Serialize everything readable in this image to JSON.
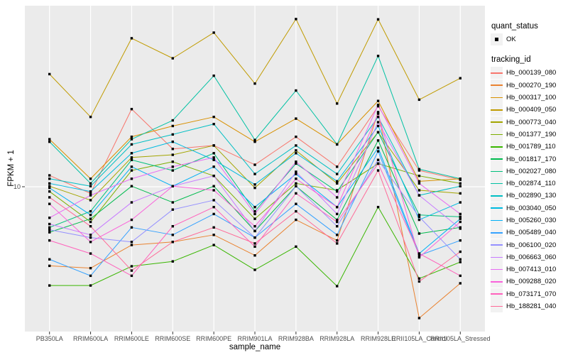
{
  "axes": {
    "x_title": "sample_name",
    "y_title": "FPKM + 1",
    "y_tick_label": "10"
  },
  "legend": {
    "quant_status_title": "quant_status",
    "quant_status_items": [
      {
        "label": "OK",
        "marker": "black-square-point"
      }
    ],
    "tracking_id_title": "tracking_id"
  },
  "colors": {
    "panel_bg": "#EBEBEB",
    "grid": "#FFFFFF",
    "tick_text": "#4D4D4D",
    "tick_mark": "#333333",
    "point": "#000000",
    "legend_key_bg": "#F2F2F2"
  },
  "chart_data": {
    "type": "line",
    "title": "",
    "xlabel": "sample_name",
    "ylabel": "FPKM + 1",
    "y_scale": "log10",
    "y_breaks": [
      10
    ],
    "grid": "major-on",
    "legend_position": "right",
    "point_shape": "filled-square",
    "categories": [
      "PB350LA",
      "RRIM600LA",
      "RRIM600LE",
      "RRIM600SE",
      "RRIM600PE",
      "RRIM901LA",
      "RRIM928BA",
      "RRIM928LA",
      "RRIM928LE",
      "RRII105LA_Control",
      "RRII105LA_Stressed"
    ],
    "series": [
      {
        "name": "Hb_000139_080",
        "color": "#F8766D",
        "values": [
          12.2,
          8.9,
          39,
          19.4,
          20.6,
          14.7,
          24,
          14.2,
          41,
          13.3,
          11.3
        ]
      },
      {
        "name": "Hb_000270_190",
        "color": "#EA8331",
        "values": [
          2.5,
          2.4,
          3.6,
          3.8,
          4.3,
          3.0,
          5.6,
          3.9,
          37,
          1.0,
          1.84
        ]
      },
      {
        "name": "Hb_000317_100",
        "color": "#D89000",
        "values": [
          23,
          11.5,
          24,
          29,
          34,
          22,
          33,
          21,
          45,
          11,
          11.5
        ]
      },
      {
        "name": "Hb_000409_050",
        "color": "#C09B00",
        "values": [
          72,
          34,
          135,
          95,
          149,
          61,
          189,
          43,
          188,
          46,
          67
        ]
      },
      {
        "name": "Hb_000773_040",
        "color": "#A3A500",
        "values": [
          10.1,
          7.9,
          16.7,
          17.5,
          20.6,
          9.8,
          18.9,
          10.6,
          26,
          9.4,
          8.9
        ]
      },
      {
        "name": "Hb_001377_190",
        "color": "#7CAE00",
        "values": [
          9.2,
          5.4,
          13.3,
          15.5,
          12.1,
          5.7,
          10.6,
          9.4,
          15,
          12.1,
          10.6
        ]
      },
      {
        "name": "Hb_001789_110",
        "color": "#39B600",
        "values": [
          1.77,
          1.77,
          2.48,
          2.7,
          3.6,
          2.33,
          3.5,
          1.75,
          7.0,
          2.0,
          2.67
        ]
      },
      {
        "name": "Hb_001817_170",
        "color": "#00BB4E",
        "values": [
          4.5,
          5.7,
          10.1,
          7.6,
          10.1,
          4.6,
          10.1,
          5.6,
          22.5,
          4.4,
          4.9
        ]
      },
      {
        "name": "Hb_002027_080",
        "color": "#00BF7D",
        "values": [
          4.9,
          6.5,
          16,
          13.3,
          18,
          6.5,
          15,
          9.2,
          26,
          6.1,
          5.9
        ]
      },
      {
        "name": "Hb_002874_110",
        "color": "#00C1A3",
        "values": [
          22,
          10.6,
          23,
          32,
          70,
          22.7,
          54,
          21,
          99,
          13.6,
          11.5
        ]
      },
      {
        "name": "Hb_002890_130",
        "color": "#00BFC4",
        "values": [
          11.5,
          10.1,
          21,
          25,
          30,
          12.5,
          20.6,
          12.5,
          34,
          8.6,
          10.1
        ]
      },
      {
        "name": "Hb_003040_050",
        "color": "#00BAE0",
        "values": [
          10.6,
          9.2,
          18,
          22,
          16,
          10.4,
          18,
          11,
          29,
          5.6,
          7.6
        ]
      },
      {
        "name": "Hb_005260_030",
        "color": "#00B0F6",
        "values": [
          9.8,
          6.1,
          14.2,
          10.1,
          14.2,
          7.0,
          12.5,
          7.0,
          19.8,
          3.1,
          5.7
        ]
      },
      {
        "name": "Hb_005489_040",
        "color": "#35A2FF",
        "values": [
          2.8,
          2.1,
          4.9,
          4.3,
          6.2,
          4.1,
          7.4,
          4.3,
          18.6,
          3.0,
          3.9
        ]
      },
      {
        "name": "Hb_006100_020",
        "color": "#9590FF",
        "values": [
          4.7,
          4.1,
          3.8,
          6.7,
          7.9,
          4.1,
          10.1,
          5.0,
          16,
          5.9,
          2.8
        ]
      },
      {
        "name": "Hb_006663_060",
        "color": "#C77CFF",
        "values": [
          5.2,
          4.3,
          7.6,
          10.1,
          12.1,
          4.6,
          13,
          6.2,
          31,
          8.6,
          4.8
        ]
      },
      {
        "name": "Hb_007413_010",
        "color": "#E76BF3",
        "values": [
          5.8,
          8.6,
          11.5,
          14.2,
          16.7,
          6.2,
          15.5,
          8.3,
          42,
          10.6,
          6.2
        ]
      },
      {
        "name": "Hb_009288_020",
        "color": "#FA62DB",
        "values": [
          7.4,
          3.8,
          5.6,
          10.1,
          9.4,
          5.0,
          11.5,
          7.0,
          36,
          2.9,
          5.4
        ]
      },
      {
        "name": "Hb_073171_070",
        "color": "#FF62BC",
        "values": [
          3.9,
          3.1,
          2.1,
          5.0,
          7.0,
          3.5,
          8.9,
          5.4,
          15,
          3.1,
          2.1
        ]
      },
      {
        "name": "Hb_188281_040",
        "color": "#FF6A98",
        "values": [
          8.3,
          5.0,
          2.3,
          3.8,
          4.9,
          3.7,
          6.5,
          3.7,
          13.3,
          1.9,
          3.2
        ]
      }
    ]
  }
}
